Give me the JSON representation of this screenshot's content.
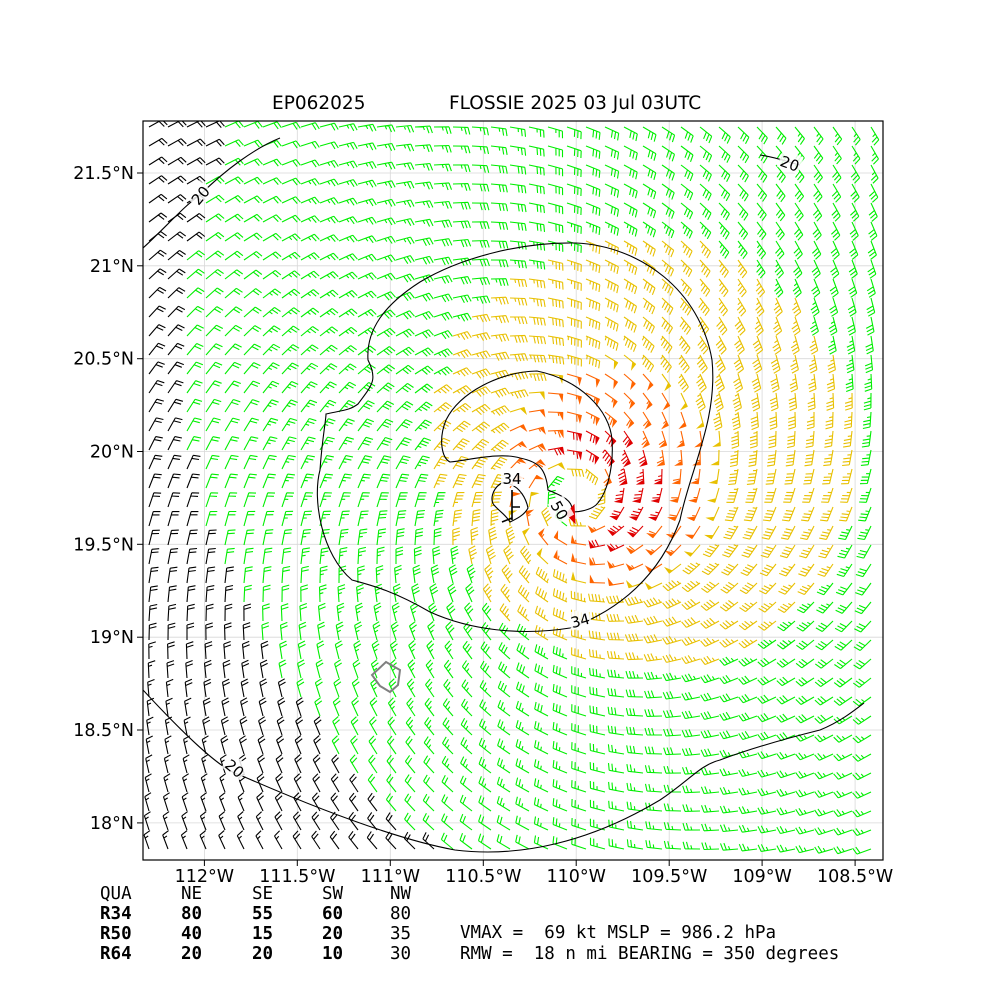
{
  "title": {
    "storm_id": "EP062025",
    "storm_label": "FLOSSIE 2025 03 Jul 03UTC"
  },
  "axes": {
    "lat_ticks": [
      "21.5°N",
      "21°N",
      "20.5°N",
      "20°N",
      "19.5°N",
      "19°N",
      "18.5°N",
      "18°N"
    ],
    "lon_ticks": [
      "112°W",
      "111.5°W",
      "111°W",
      "110.5°W",
      "110°W",
      "109.5°W",
      "109°W",
      "108.5°W"
    ],
    "lat_range": [
      17.8,
      21.78
    ],
    "lon_range": [
      112.33,
      108.35
    ]
  },
  "map": {
    "storm_center": {
      "lat": 19.75,
      "lon": 110.0
    },
    "contour_labels": [
      "20",
      "20",
      "34",
      "34",
      "50",
      "20"
    ],
    "wind_colors": {
      "lt34": "#00ee00",
      "34to50": "#e8c000",
      "50to64": "#ff6400",
      "ge64": "#e00000",
      "lt20": "#000000",
      "island_outline": "#808080"
    }
  },
  "radii_table": {
    "header": [
      "QUA",
      "NE",
      "SE",
      "SW",
      "NW"
    ],
    "rows": [
      {
        "label": "R34",
        "NE": "80",
        "SE": "55",
        "SW": "60",
        "NW": "80"
      },
      {
        "label": "R50",
        "NE": "40",
        "SE": "15",
        "SW": "20",
        "NW": "35"
      },
      {
        "label": "R64",
        "NE": "20",
        "SE": "20",
        "SW": "10",
        "NW": "30"
      }
    ]
  },
  "summary": {
    "line1": "VMAX =  69 kt MSLP = 986.2 hPa",
    "line2": "RMW =  18 n mi BEARING = 350 degrees"
  }
}
